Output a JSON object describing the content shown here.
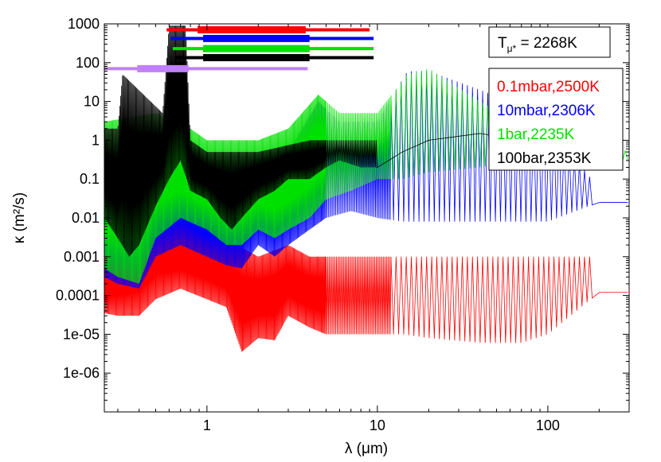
{
  "chart_data": {
    "type": "line",
    "xlabel": "λ (μm)",
    "ylabel": "κ (m²/s)",
    "xscale": "log",
    "yscale": "log",
    "xlim": [
      0.25,
      300
    ],
    "ylim": [
      1e-07,
      1000
    ],
    "x_ticks": [
      {
        "value": 1,
        "label": "1"
      },
      {
        "value": 10,
        "label": "10"
      },
      {
        "value": 100,
        "label": "100"
      }
    ],
    "y_ticks": [
      {
        "value": 1e-06,
        "label": "1e-06"
      },
      {
        "value": 1e-05,
        "label": "1e-05"
      },
      {
        "value": 0.0001,
        "label": "0.0001"
      },
      {
        "value": 0.001,
        "label": "0.001"
      },
      {
        "value": 0.01,
        "label": "0.01"
      },
      {
        "value": 0.1,
        "label": "0.1"
      },
      {
        "value": 1,
        "label": "1"
      },
      {
        "value": 10,
        "label": "10"
      },
      {
        "value": 100,
        "label": "100"
      },
      {
        "value": 1000,
        "label": "1000"
      }
    ],
    "annotation": {
      "text_main": "T",
      "text_sub": "μ*",
      "text_rest": " = 2268K"
    },
    "legend_placement": "right",
    "series": [
      {
        "name": "0.1mbar,2500K",
        "color": "#ff0000",
        "low_points": [
          [
            0.25,
            3.5e-05
          ],
          [
            0.3,
            3e-05
          ],
          [
            0.4,
            3e-05
          ],
          [
            0.5,
            8e-05
          ],
          [
            0.7,
            0.00015
          ],
          [
            1.0,
            8e-05
          ],
          [
            1.3,
            5e-05
          ],
          [
            1.6,
            3.5e-06
          ],
          [
            2.0,
            8e-06
          ],
          [
            2.5,
            7e-06
          ],
          [
            3.0,
            3e-05
          ],
          [
            4.0,
            1.5e-05
          ],
          [
            5.0,
            1e-05
          ],
          [
            7.0,
            1e-05
          ],
          [
            10.0,
            1e-05
          ],
          [
            14.0,
            1e-05
          ],
          [
            20.0,
            8e-06
          ],
          [
            40.0,
            6e-06
          ],
          [
            70.0,
            6e-06
          ],
          [
            100.0,
            1e-05
          ],
          [
            200.0,
            0.00012
          ],
          [
            300.0,
            0.00012
          ]
        ],
        "peak_points": [
          [
            0.25,
            0.001
          ],
          [
            0.5,
            0.015
          ],
          [
            0.7,
            0.008
          ],
          [
            1.0,
            0.005
          ],
          [
            1.5,
            0.002
          ],
          [
            2.0,
            0.001
          ],
          [
            3.0,
            0.002
          ],
          [
            4.0,
            0.001
          ],
          [
            6.0,
            0.001
          ],
          [
            10.0,
            0.001
          ],
          [
            20.0,
            0.001
          ],
          [
            50.0,
            0.001
          ],
          [
            100.0,
            0.001
          ],
          [
            180.0,
            0.001
          ]
        ]
      },
      {
        "name": "10mbar,2306K",
        "color": "#0000ff",
        "low_points": [
          [
            0.25,
            0.0003
          ],
          [
            0.3,
            0.0002
          ],
          [
            0.4,
            0.00015
          ],
          [
            0.5,
            0.001
          ],
          [
            0.7,
            0.002
          ],
          [
            1.0,
            0.001
          ],
          [
            1.3,
            0.0006
          ],
          [
            1.6,
            0.0005
          ],
          [
            2.0,
            0.002
          ],
          [
            2.5,
            0.001
          ],
          [
            3.0,
            0.002
          ],
          [
            4.0,
            0.005
          ],
          [
            5.0,
            0.01
          ],
          [
            7.0,
            0.015
          ],
          [
            10.0,
            0.01
          ],
          [
            14.0,
            0.008
          ],
          [
            20.0,
            0.008
          ],
          [
            40.0,
            0.008
          ],
          [
            70.0,
            0.008
          ],
          [
            100.0,
            0.008
          ],
          [
            200.0,
            0.025
          ],
          [
            300.0,
            0.025
          ]
        ],
        "peak_points": [
          [
            0.25,
            0.1
          ],
          [
            0.5,
            0.3
          ],
          [
            0.7,
            0.5
          ],
          [
            1.0,
            0.1
          ],
          [
            2.0,
            0.2
          ],
          [
            3.0,
            0.5
          ],
          [
            4.5,
            10
          ],
          [
            6.0,
            3
          ],
          [
            10.0,
            3
          ],
          [
            15.0,
            60
          ],
          [
            20.0,
            60
          ],
          [
            40.0,
            20
          ],
          [
            60.0,
            10
          ],
          [
            100.0,
            3
          ],
          [
            180.0,
            0.1
          ]
        ]
      },
      {
        "name": "1bar,2235K",
        "color": "#00e000",
        "low_points": [
          [
            0.25,
            0.0005
          ],
          [
            0.3,
            0.0003
          ],
          [
            0.4,
            0.0002
          ],
          [
            0.5,
            0.003
          ],
          [
            0.7,
            0.01
          ],
          [
            1.0,
            0.005
          ],
          [
            1.3,
            0.002
          ],
          [
            1.6,
            0.002
          ],
          [
            2.0,
            0.005
          ],
          [
            2.5,
            0.003
          ],
          [
            3.0,
            0.005
          ],
          [
            4.0,
            0.01
          ],
          [
            5.0,
            0.03
          ],
          [
            7.0,
            0.05
          ],
          [
            10.0,
            0.1
          ],
          [
            14.0,
            0.1
          ],
          [
            20.0,
            0.15
          ],
          [
            40.0,
            0.2
          ],
          [
            70.0,
            0.3
          ],
          [
            100.0,
            0.3
          ],
          [
            200.0,
            0.3
          ],
          [
            300.0,
            0.3
          ]
        ],
        "peak_points": [
          [
            0.25,
            3
          ],
          [
            0.5,
            5
          ],
          [
            0.7,
            3
          ],
          [
            1.0,
            1
          ],
          [
            2.0,
            1
          ],
          [
            3.0,
            2
          ],
          [
            4.5,
            15
          ],
          [
            6.0,
            5
          ],
          [
            10.0,
            5
          ],
          [
            15.0,
            50
          ],
          [
            20.0,
            70
          ],
          [
            40.0,
            10
          ],
          [
            70.0,
            3
          ],
          [
            120.0,
            1
          ],
          [
            200.0,
            1
          ],
          [
            300.0,
            0.5
          ]
        ]
      },
      {
        "name": "100bar,2353K",
        "color": "#000000",
        "low_points": [
          [
            0.25,
            0.01
          ],
          [
            0.3,
            0.003
          ],
          [
            0.35,
            0.001
          ],
          [
            0.4,
            0.002
          ],
          [
            0.5,
            0.02
          ],
          [
            0.6,
            0.1
          ],
          [
            0.7,
            0.3
          ],
          [
            0.8,
            0.05
          ],
          [
            1.0,
            0.03
          ],
          [
            1.2,
            0.01
          ],
          [
            1.4,
            0.005
          ],
          [
            1.6,
            0.01
          ],
          [
            2.0,
            0.03
          ],
          [
            2.5,
            0.05
          ],
          [
            3.0,
            0.1
          ],
          [
            3.5,
            0.1
          ],
          [
            4.0,
            0.1
          ],
          [
            5.0,
            0.2
          ],
          [
            6.0,
            0.3
          ],
          [
            8.0,
            0.2
          ],
          [
            10.0,
            0.2
          ],
          [
            14.0,
            0.5
          ],
          [
            20.0,
            1
          ],
          [
            40.0,
            1.5
          ],
          [
            70.0,
            1
          ],
          [
            100.0,
            1
          ],
          [
            130.0,
            1.5
          ]
        ],
        "peak_points": [
          [
            0.3,
            2
          ],
          [
            0.32,
            50
          ],
          [
            0.55,
            5
          ],
          [
            0.6,
            900
          ],
          [
            0.75,
            900
          ],
          [
            0.8,
            1
          ],
          [
            1.0,
            0.5
          ],
          [
            2.0,
            0.5
          ],
          [
            4.0,
            1
          ],
          [
            10.0,
            1
          ]
        ]
      }
    ],
    "range_bars": [
      {
        "color": "#ff0000",
        "y": 700,
        "thin": [
          0.58,
          9.0
        ],
        "thick": [
          0.88,
          3.8
        ]
      },
      {
        "color": "#0000ff",
        "y": 420,
        "thin": [
          0.61,
          9.5
        ],
        "thick": [
          0.95,
          4.0
        ]
      },
      {
        "color": "#00e000",
        "y": 230,
        "thin": [
          0.63,
          9.5
        ],
        "thick": [
          0.95,
          4.0
        ]
      },
      {
        "color": "#000000",
        "y": 135,
        "thin": [
          0.65,
          9.5
        ],
        "thick": [
          0.95,
          4.0
        ]
      },
      {
        "color": "#c080ff",
        "y": 70,
        "thin": [
          0.25,
          3.9
        ],
        "thick": [
          0.39,
          0.78
        ]
      }
    ]
  }
}
